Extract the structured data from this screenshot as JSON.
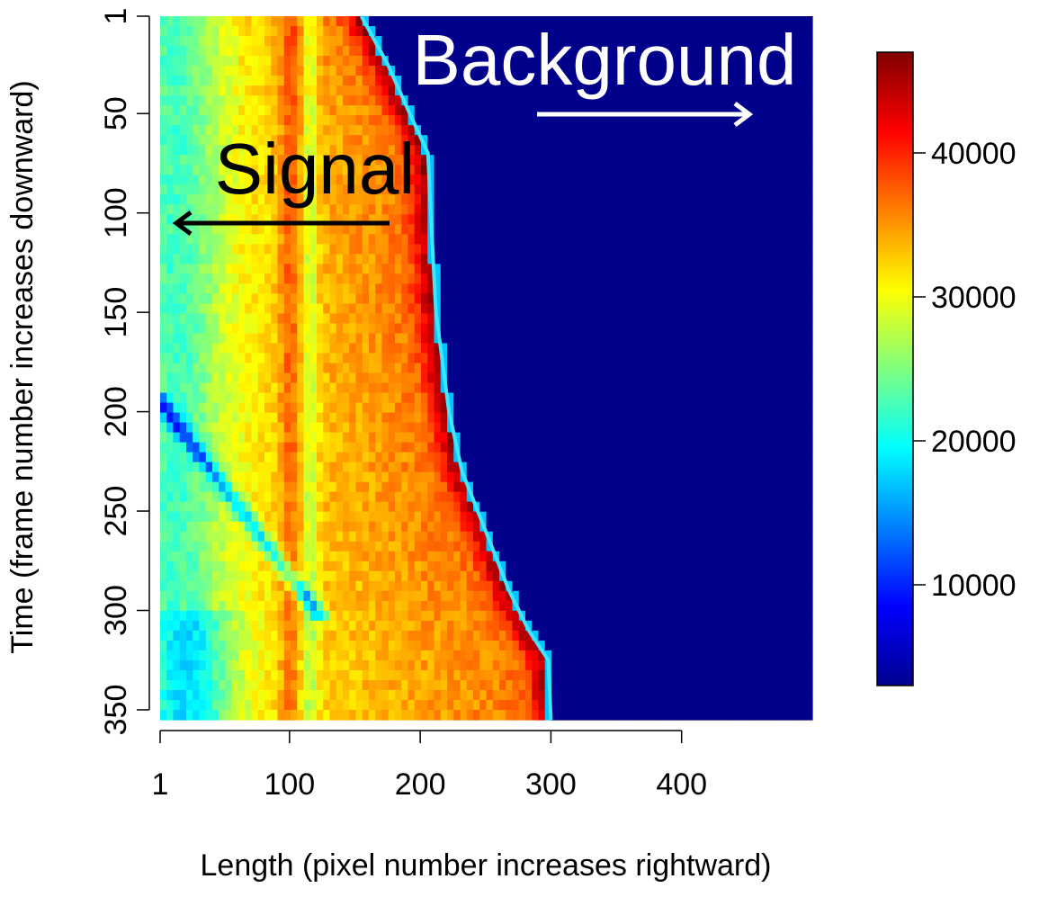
{
  "chart_data": {
    "type": "heatmap",
    "title": "",
    "xlabel": "Length (pixel number increases rightward)",
    "ylabel": "Time (frame number increases downward)",
    "xlim": [
      1,
      500
    ],
    "ylim": [
      1,
      355
    ],
    "y_reversed": true,
    "x_ticks": [
      1,
      100,
      200,
      300,
      400
    ],
    "y_ticks": [
      1,
      50,
      100,
      150,
      200,
      250,
      300,
      350
    ],
    "colorbar": {
      "range": [
        3000,
        47000
      ],
      "ticks": [
        10000,
        20000,
        30000,
        40000
      ],
      "colormap": "jet"
    },
    "signal_boundary": [
      {
        "t": 1,
        "x": 155
      },
      {
        "t": 25,
        "x": 175
      },
      {
        "t": 50,
        "x": 192
      },
      {
        "t": 70,
        "x": 206
      },
      {
        "t": 100,
        "x": 208
      },
      {
        "t": 150,
        "x": 212
      },
      {
        "t": 180,
        "x": 218
      },
      {
        "t": 200,
        "x": 222
      },
      {
        "t": 230,
        "x": 232
      },
      {
        "t": 260,
        "x": 250
      },
      {
        "t": 290,
        "x": 268
      },
      {
        "t": 310,
        "x": 283
      },
      {
        "t": 325,
        "x": 298
      },
      {
        "t": 355,
        "x": 300
      }
    ],
    "background_level": 3500,
    "annotations": [
      {
        "text": "Signal",
        "arrow": "left"
      },
      {
        "text": "Background",
        "arrow": "right"
      }
    ]
  }
}
